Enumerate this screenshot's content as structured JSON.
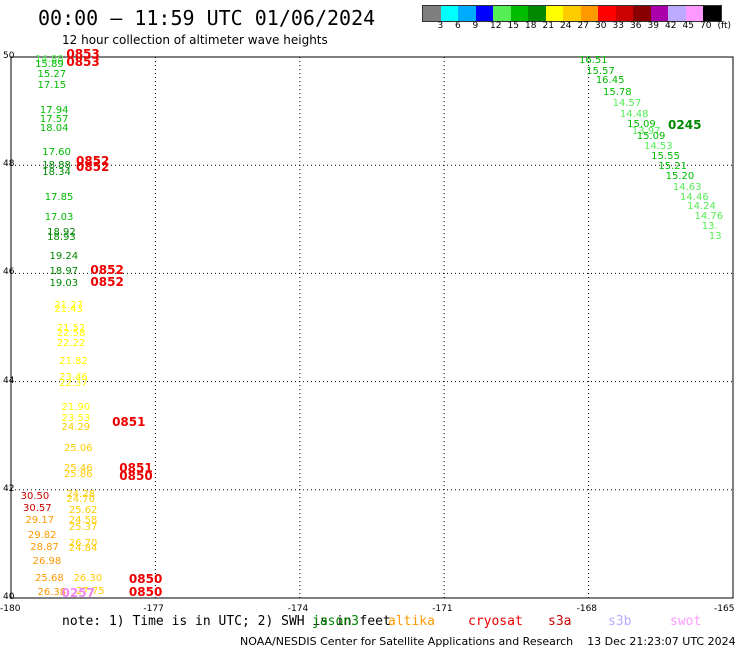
{
  "header": {
    "title": "00:00 – 11:59 UTC 01/06/2024",
    "subtitle": "12 hour collection of altimeter wave heights"
  },
  "color_scale": {
    "swatches": [
      {
        "color": "#7f7f7f",
        "label": "3"
      },
      {
        "color": "#00ffff",
        "label": "6"
      },
      {
        "color": "#00aaff",
        "label": "9"
      },
      {
        "color": "#0000ff",
        "label": "12"
      },
      {
        "color": "#55ee55",
        "label": "15"
      },
      {
        "color": "#00bb00",
        "label": "18"
      },
      {
        "color": "#008800",
        "label": "21"
      },
      {
        "color": "#ffff00",
        "label": "24"
      },
      {
        "color": "#ffcc00",
        "label": "27"
      },
      {
        "color": "#ff9900",
        "label": "30"
      },
      {
        "color": "#ff0000",
        "label": "33"
      },
      {
        "color": "#cc0000",
        "label": "36"
      },
      {
        "color": "#880000",
        "label": "39"
      },
      {
        "color": "#aa00aa",
        "label": "42"
      },
      {
        "color": "#bbaaff",
        "label": "45"
      },
      {
        "color": "#ff99ff",
        "label": "70"
      },
      {
        "color": "#000000",
        "label": "(ft)"
      }
    ]
  },
  "map": {
    "lat_labels": [
      {
        "text": "50",
        "lat": 50
      },
      {
        "text": "48",
        "lat": 48
      },
      {
        "text": "46",
        "lat": 46
      },
      {
        "text": "44",
        "lat": 44
      },
      {
        "text": "42",
        "lat": 42
      },
      {
        "text": "40",
        "lat": 40
      }
    ],
    "lon_labels": [
      {
        "text": "-180",
        "lon": -180
      },
      {
        "text": "-177",
        "lon": -177
      },
      {
        "text": "-174",
        "lon": -174
      },
      {
        "text": "-171",
        "lon": -171
      },
      {
        "text": "-168",
        "lon": -168
      },
      {
        "text": "-165",
        "lon": -165
      }
    ],
    "wave_heights": [
      {
        "v": "14.88",
        "lon": -179.5,
        "lat": 49.95,
        "c": "#55ee55"
      },
      {
        "v": "15.89",
        "lon": -179.5,
        "lat": 49.86,
        "c": "#00bb00"
      },
      {
        "v": "15.27",
        "lon": -179.45,
        "lat": 49.66,
        "c": "#00bb00"
      },
      {
        "v": "17.15",
        "lon": -179.45,
        "lat": 49.47,
        "c": "#00bb00"
      },
      {
        "v": "17.94",
        "lon": -179.4,
        "lat": 49.0,
        "c": "#00bb00"
      },
      {
        "v": "17.57",
        "lon": -179.4,
        "lat": 48.84,
        "c": "#00bb00"
      },
      {
        "v": "18.04",
        "lon": -179.4,
        "lat": 48.66,
        "c": "#00bb00"
      },
      {
        "v": "17.60",
        "lon": -179.35,
        "lat": 48.22,
        "c": "#00bb00"
      },
      {
        "v": "18.88",
        "lon": -179.35,
        "lat": 47.99,
        "c": "#008800"
      },
      {
        "v": "18.34",
        "lon": -179.35,
        "lat": 47.86,
        "c": "#008800"
      },
      {
        "v": "17.85",
        "lon": -179.3,
        "lat": 47.4,
        "c": "#00bb00"
      },
      {
        "v": "17.03",
        "lon": -179.3,
        "lat": 47.03,
        "c": "#00bb00"
      },
      {
        "v": "18.92",
        "lon": -179.25,
        "lat": 46.74,
        "c": "#008800"
      },
      {
        "v": "18.93",
        "lon": -179.25,
        "lat": 46.66,
        "c": "#008800"
      },
      {
        "v": "19.24",
        "lon": -179.2,
        "lat": 46.3,
        "c": "#008800"
      },
      {
        "v": "18.97",
        "lon": -179.2,
        "lat": 46.03,
        "c": "#008800"
      },
      {
        "v": "19.03",
        "lon": -179.2,
        "lat": 45.8,
        "c": "#008800"
      },
      {
        "v": "21.27",
        "lon": -179.1,
        "lat": 45.4,
        "c": "#ffff00"
      },
      {
        "v": "21.43",
        "lon": -179.1,
        "lat": 45.33,
        "c": "#ffff00"
      },
      {
        "v": "21.52",
        "lon": -179.05,
        "lat": 44.97,
        "c": "#ffff00"
      },
      {
        "v": "22.58",
        "lon": -179.05,
        "lat": 44.88,
        "c": "#ffff00"
      },
      {
        "v": "22.22",
        "lon": -179.05,
        "lat": 44.69,
        "c": "#ffff00"
      },
      {
        "v": "21.82",
        "lon": -179.0,
        "lat": 44.37,
        "c": "#ffff00"
      },
      {
        "v": "23.46",
        "lon": -179.0,
        "lat": 44.07,
        "c": "#ffff00"
      },
      {
        "v": "22.37",
        "lon": -179.0,
        "lat": 43.96,
        "c": "#ffff00"
      },
      {
        "v": "21.90",
        "lon": -178.95,
        "lat": 43.52,
        "c": "#ffff00"
      },
      {
        "v": "23.53",
        "lon": -178.95,
        "lat": 43.31,
        "c": "#ffff00"
      },
      {
        "v": "24.29",
        "lon": -178.95,
        "lat": 43.15,
        "c": "#ffcc00"
      },
      {
        "v": "25.06",
        "lon": -178.9,
        "lat": 42.75,
        "c": "#ffcc00"
      },
      {
        "v": "25.46",
        "lon": -178.9,
        "lat": 42.38,
        "c": "#ffcc00"
      },
      {
        "v": "25.86",
        "lon": -178.9,
        "lat": 42.27,
        "c": "#ffcc00"
      },
      {
        "v": "24.28",
        "lon": -178.85,
        "lat": 41.9,
        "c": "#ffcc00"
      },
      {
        "v": "24.70",
        "lon": -178.85,
        "lat": 41.82,
        "c": "#ffcc00"
      },
      {
        "v": "25.62",
        "lon": -178.8,
        "lat": 41.6,
        "c": "#ffcc00"
      },
      {
        "v": "24.58",
        "lon": -178.8,
        "lat": 41.42,
        "c": "#ffcc00"
      },
      {
        "v": "25.37",
        "lon": -178.8,
        "lat": 41.3,
        "c": "#ffcc00"
      },
      {
        "v": "26.70",
        "lon": -178.8,
        "lat": 41.0,
        "c": "#ffcc00"
      },
      {
        "v": "24.84",
        "lon": -178.8,
        "lat": 40.91,
        "c": "#ffcc00"
      },
      {
        "v": "26.30",
        "lon": -178.7,
        "lat": 40.36,
        "c": "#ffcc00"
      },
      {
        "v": "27.75",
        "lon": -178.65,
        "lat": 40.12,
        "c": "#ffcc00"
      },
      {
        "v": "30.50",
        "lon": -179.8,
        "lat": 41.86,
        "c": "#cc0000"
      },
      {
        "v": "30.57",
        "lon": -179.75,
        "lat": 41.64,
        "c": "#cc0000"
      },
      {
        "v": "29.17",
        "lon": -179.7,
        "lat": 41.42,
        "c": "#ff9900"
      },
      {
        "v": "29.82",
        "lon": -179.65,
        "lat": 41.15,
        "c": "#ff9900"
      },
      {
        "v": "28.87",
        "lon": -179.6,
        "lat": 40.92,
        "c": "#ff9900"
      },
      {
        "v": "26.98",
        "lon": -179.55,
        "lat": 40.67,
        "c": "#ff9900"
      },
      {
        "v": "25.68",
        "lon": -179.5,
        "lat": 40.36,
        "c": "#ff9900"
      },
      {
        "v": "26.38",
        "lon": -179.45,
        "lat": 40.1,
        "c": "#ff9900"
      },
      {
        "v": "16.51",
        "lon": -168.2,
        "lat": 49.92,
        "c": "#00bb00"
      },
      {
        "v": "15.57",
        "lon": -168.05,
        "lat": 49.73,
        "c": "#00bb00"
      },
      {
        "v": "16.45",
        "lon": -167.85,
        "lat": 49.55,
        "c": "#00bb00"
      },
      {
        "v": "15.78",
        "lon": -167.7,
        "lat": 49.34,
        "c": "#00bb00"
      },
      {
        "v": "14.57",
        "lon": -167.5,
        "lat": 49.13,
        "c": "#55ee55"
      },
      {
        "v": "14.48",
        "lon": -167.35,
        "lat": 48.92,
        "c": "#55ee55"
      },
      {
        "v": "15.09",
        "lon": -167.2,
        "lat": 48.75,
        "c": "#00bb00"
      },
      {
        "v": "13.97",
        "lon": -167.1,
        "lat": 48.62,
        "c": "#55ee55"
      },
      {
        "v": "15.09",
        "lon": -167.0,
        "lat": 48.53,
        "c": "#00bb00"
      },
      {
        "v": "14.53",
        "lon": -166.85,
        "lat": 48.34,
        "c": "#55ee55"
      },
      {
        "v": "15.55",
        "lon": -166.7,
        "lat": 48.16,
        "c": "#00bb00"
      },
      {
        "v": "15.21",
        "lon": -166.55,
        "lat": 47.97,
        "c": "#00bb00"
      },
      {
        "v": "15.20",
        "lon": -166.4,
        "lat": 47.78,
        "c": "#00bb00"
      },
      {
        "v": "14.63",
        "lon": -166.25,
        "lat": 47.58,
        "c": "#55ee55"
      },
      {
        "v": "14.46",
        "lon": -166.1,
        "lat": 47.4,
        "c": "#55ee55"
      },
      {
        "v": "14.24",
        "lon": -165.95,
        "lat": 47.22,
        "c": "#55ee55"
      },
      {
        "v": "14.76",
        "lon": -165.8,
        "lat": 47.04,
        "c": "#55ee55"
      },
      {
        "v": "13.",
        "lon": -165.65,
        "lat": 46.86,
        "c": "#55ee55"
      },
      {
        "v": "13",
        "lon": -165.5,
        "lat": 46.68,
        "c": "#55ee55"
      }
    ],
    "time_labels": [
      {
        "t": "0853",
        "lon": -178.85,
        "lat": 50.05,
        "c": "#ee0000"
      },
      {
        "t": "0853",
        "lon": -178.85,
        "lat": 49.9,
        "c": "#ee0000"
      },
      {
        "t": "0852",
        "lon": -178.65,
        "lat": 48.07,
        "c": "#ee0000"
      },
      {
        "t": "0852",
        "lon": -178.65,
        "lat": 47.96,
        "c": "#ee0000"
      },
      {
        "t": "0852",
        "lon": -178.35,
        "lat": 46.06,
        "c": "#ee0000"
      },
      {
        "t": "0852",
        "lon": -178.35,
        "lat": 45.84,
        "c": "#ee0000"
      },
      {
        "t": "0851",
        "lon": -177.9,
        "lat": 43.26,
        "c": "#ee0000"
      },
      {
        "t": "0851",
        "lon": -177.75,
        "lat": 42.4,
        "c": "#ee0000"
      },
      {
        "t": "0850",
        "lon": -177.75,
        "lat": 42.26,
        "c": "#ee0000"
      },
      {
        "t": "0850",
        "lon": -177.55,
        "lat": 40.36,
        "c": "#ee0000"
      },
      {
        "t": "0850",
        "lon": -177.55,
        "lat": 40.12,
        "c": "#ee0000"
      },
      {
        "t": "0257",
        "lon": -178.95,
        "lat": 40.1,
        "c": "#ee88ee"
      },
      {
        "t": "0245",
        "lon": -166.35,
        "lat": 48.75,
        "c": "#008800"
      }
    ]
  },
  "footer": {
    "note": "note: 1) Time is in UTC; 2) SWH is in feet",
    "satellites": [
      {
        "name": "jason3",
        "color": "#008800"
      },
      {
        "name": "altika",
        "color": "#ff9900"
      },
      {
        "name": "cryosat",
        "color": "#ee0000"
      },
      {
        "name": "s3a",
        "color": "#cc0000"
      },
      {
        "name": "s3b",
        "color": "#bbaaff"
      },
      {
        "name": "swot",
        "color": "#ff99ff"
      }
    ],
    "credit": "NOAA/NESDIS Center for Satellite Applications and Research    13 Dec 21:23:07 UTC 2024"
  }
}
